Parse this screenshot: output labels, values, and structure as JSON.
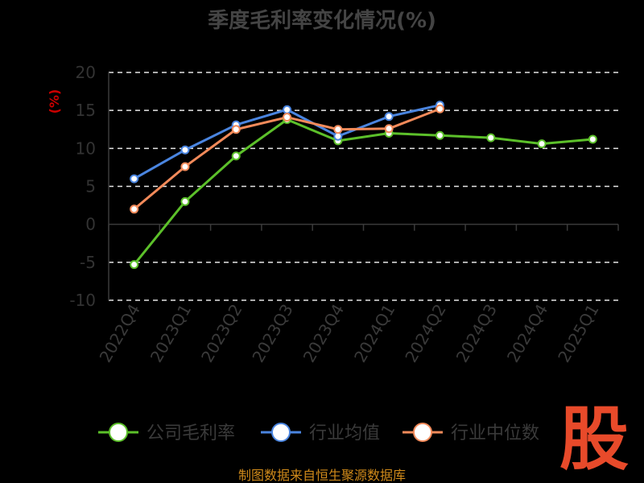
{
  "chart_data": {
    "type": "line",
    "title": "季度毛利率变化情况(%)",
    "ylabel": "(%)",
    "xlabel": "",
    "ylim": [
      -10,
      20
    ],
    "yticks": [
      20,
      15,
      10,
      5,
      0,
      -5,
      -10
    ],
    "categories": [
      "2022Q4",
      "2023Q1",
      "2023Q2",
      "2023Q3",
      "2023Q4",
      "2024Q1",
      "2024Q2",
      "2024Q3",
      "2024Q4",
      "2025Q1"
    ],
    "grid": true,
    "legend_position": "bottom",
    "series": [
      {
        "name": "公司毛利率",
        "color": "#5cc02a",
        "values": [
          -5.3,
          3.0,
          9.0,
          13.8,
          11.0,
          12.0,
          11.7,
          11.4,
          10.6,
          11.2
        ]
      },
      {
        "name": "行业均值",
        "color": "#4a85e0",
        "values": [
          6.0,
          9.8,
          13.1,
          15.1,
          11.6,
          14.2,
          15.7,
          null,
          null,
          null
        ]
      },
      {
        "name": "行业中位数",
        "color": "#f28a5a",
        "values": [
          2.0,
          7.6,
          12.5,
          14.1,
          12.5,
          12.6,
          15.2,
          null,
          null,
          null
        ]
      }
    ]
  },
  "source": "制图数据来自恒生聚源数据库",
  "logo": "股"
}
